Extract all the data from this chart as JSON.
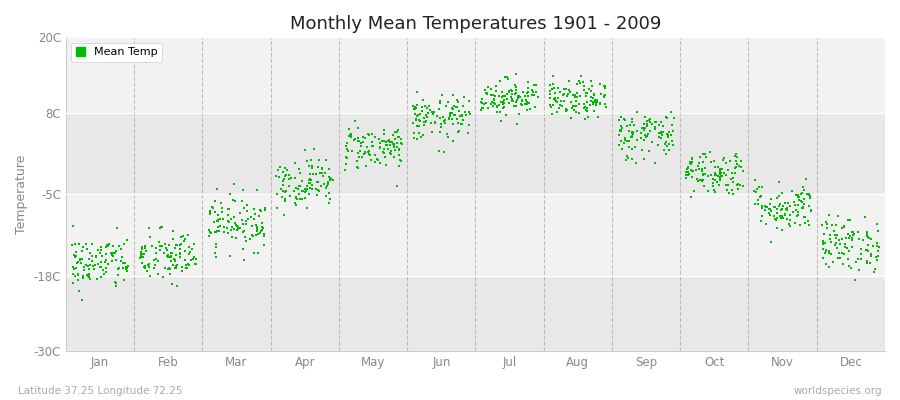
{
  "title": "Monthly Mean Temperatures 1901 - 2009",
  "ylabel": "Temperature",
  "subtitle": "Latitude 37.25 Longitude 72.25",
  "watermark": "worldspecies.org",
  "months": [
    "Jan",
    "Feb",
    "Mar",
    "Apr",
    "May",
    "Jun",
    "Jul",
    "Aug",
    "Sep",
    "Oct",
    "Nov",
    "Dec"
  ],
  "month_centers": [
    1,
    2,
    3,
    4,
    5,
    6,
    7,
    8,
    9,
    10,
    11,
    12
  ],
  "mean_temps": [
    -16.0,
    -15.0,
    -9.5,
    -3.0,
    2.5,
    7.0,
    10.5,
    10.0,
    4.5,
    -1.5,
    -7.0,
    -13.0
  ],
  "std_temps": [
    2.2,
    2.2,
    2.2,
    2.0,
    1.8,
    1.8,
    1.5,
    1.5,
    2.0,
    1.8,
    2.0,
    2.2
  ],
  "ylim": [
    -30,
    20
  ],
  "yticks": [
    -30,
    -18,
    -5,
    8,
    20
  ],
  "ytick_labels": [
    "-30C",
    "-18C",
    "-5C",
    "8C",
    "20C"
  ],
  "dot_color": "#00bb00",
  "dot_size": 2.5,
  "figure_bg": "#ffffff",
  "plot_bg": "#eeeeee",
  "band_colors": [
    "#e8e8e8",
    "#f2f2f2"
  ],
  "n_years": 109,
  "seed": 42,
  "grid_color": "#cccccc",
  "dashed_color": "#999999",
  "spine_color": "#cccccc",
  "tick_color": "#888888",
  "title_color": "#222222",
  "label_color": "#888888",
  "subtitle_color": "#aaaaaa"
}
